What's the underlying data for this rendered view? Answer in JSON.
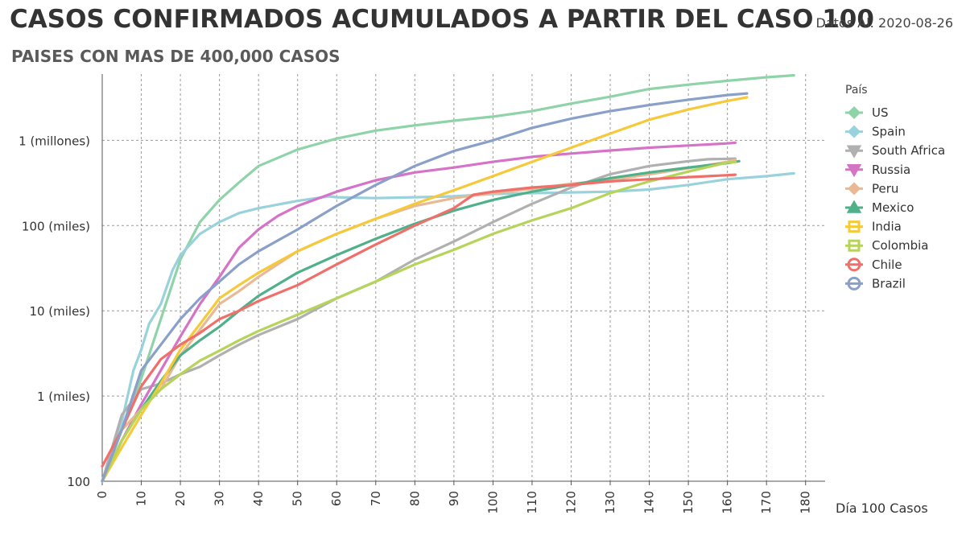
{
  "header": {
    "title": "CASOS CONFIRMADOS ACUMULADOS A PARTIR DEL CASO 100",
    "subtitle": "PAISES CON MAS DE 400,000 CASOS",
    "date_prefix": "Datos Al: ",
    "date_value": "2020-08-26"
  },
  "chart_data": {
    "type": "line",
    "title": "CASOS CONFIRMADOS ACUMULADOS A PARTIR DEL CASO 100",
    "xlabel": "Día 100 Casos",
    "ylabel": "",
    "yscale": "log",
    "xlim": [
      0,
      185
    ],
    "ylim": [
      100,
      6000000
    ],
    "x_ticks": [
      0,
      10,
      20,
      30,
      40,
      50,
      60,
      70,
      80,
      90,
      100,
      110,
      120,
      130,
      140,
      150,
      160,
      170,
      180
    ],
    "y_ticks": [
      {
        "value": 100,
        "label": "100"
      },
      {
        "value": 1000,
        "label": "1 (miles)"
      },
      {
        "value": 10000,
        "label": "10 (miles)"
      },
      {
        "value": 100000,
        "label": "100 (miles)"
      },
      {
        "value": 1000000,
        "label": "1 (millones)"
      }
    ],
    "grid": true,
    "legend_title": "País",
    "legend_position": "right",
    "series": [
      {
        "name": "US",
        "color": "#8fd3a8",
        "marker": "diamond",
        "points": [
          [
            0,
            100
          ],
          [
            5,
            400
          ],
          [
            10,
            1600
          ],
          [
            15,
            8000
          ],
          [
            20,
            40000
          ],
          [
            25,
            110000
          ],
          [
            30,
            200000
          ],
          [
            35,
            320000
          ],
          [
            40,
            500000
          ],
          [
            50,
            780000
          ],
          [
            60,
            1050000
          ],
          [
            70,
            1300000
          ],
          [
            80,
            1500000
          ],
          [
            90,
            1700000
          ],
          [
            100,
            1900000
          ],
          [
            110,
            2200000
          ],
          [
            120,
            2700000
          ],
          [
            130,
            3250000
          ],
          [
            140,
            4000000
          ],
          [
            150,
            4500000
          ],
          [
            160,
            5000000
          ],
          [
            170,
            5500000
          ],
          [
            177,
            5800000
          ]
        ]
      },
      {
        "name": "Spain",
        "color": "#9ad2dc",
        "marker": "diamond",
        "points": [
          [
            0,
            100
          ],
          [
            5,
            500
          ],
          [
            8,
            2000
          ],
          [
            10,
            3500
          ],
          [
            12,
            7000
          ],
          [
            15,
            12000
          ],
          [
            18,
            30000
          ],
          [
            20,
            45000
          ],
          [
            25,
            80000
          ],
          [
            30,
            110000
          ],
          [
            35,
            140000
          ],
          [
            40,
            160000
          ],
          [
            50,
            195000
          ],
          [
            58,
            220000
          ],
          [
            60,
            215000
          ],
          [
            70,
            210000
          ],
          [
            80,
            215000
          ],
          [
            90,
            220000
          ],
          [
            100,
            235000
          ],
          [
            110,
            240000
          ],
          [
            120,
            245000
          ],
          [
            130,
            250000
          ],
          [
            140,
            265000
          ],
          [
            150,
            300000
          ],
          [
            160,
            350000
          ],
          [
            170,
            380000
          ],
          [
            177,
            410000
          ]
        ]
      },
      {
        "name": "South Africa",
        "color": "#b0b0b0",
        "marker": "triangle-down",
        "points": [
          [
            0,
            100
          ],
          [
            5,
            600
          ],
          [
            10,
            1200
          ],
          [
            15,
            1400
          ],
          [
            20,
            1800
          ],
          [
            25,
            2200
          ],
          [
            30,
            3000
          ],
          [
            35,
            4000
          ],
          [
            40,
            5200
          ],
          [
            50,
            8000
          ],
          [
            60,
            14000
          ],
          [
            70,
            22000
          ],
          [
            80,
            40000
          ],
          [
            90,
            65000
          ],
          [
            100,
            110000
          ],
          [
            110,
            180000
          ],
          [
            120,
            280000
          ],
          [
            130,
            400000
          ],
          [
            140,
            500000
          ],
          [
            150,
            570000
          ],
          [
            155,
            600000
          ],
          [
            162,
            610000
          ]
        ]
      },
      {
        "name": "Russia",
        "color": "#d573c7",
        "marker": "triangle-down",
        "points": [
          [
            0,
            100
          ],
          [
            5,
            300
          ],
          [
            10,
            800
          ],
          [
            15,
            2000
          ],
          [
            20,
            5000
          ],
          [
            25,
            12000
          ],
          [
            30,
            25000
          ],
          [
            35,
            55000
          ],
          [
            40,
            90000
          ],
          [
            45,
            130000
          ],
          [
            50,
            170000
          ],
          [
            60,
            250000
          ],
          [
            70,
            340000
          ],
          [
            80,
            420000
          ],
          [
            90,
            480000
          ],
          [
            100,
            560000
          ],
          [
            110,
            640000
          ],
          [
            120,
            700000
          ],
          [
            130,
            760000
          ],
          [
            140,
            820000
          ],
          [
            150,
            870000
          ],
          [
            160,
            920000
          ],
          [
            162,
            940000
          ]
        ]
      },
      {
        "name": "Peru",
        "color": "#e8b994",
        "marker": "diamond",
        "points": [
          [
            0,
            100
          ],
          [
            5,
            400
          ],
          [
            10,
            700
          ],
          [
            15,
            1200
          ],
          [
            20,
            3000
          ],
          [
            25,
            6000
          ],
          [
            30,
            12000
          ],
          [
            35,
            17000
          ],
          [
            40,
            25000
          ],
          [
            50,
            50000
          ],
          [
            60,
            80000
          ],
          [
            70,
            120000
          ],
          [
            80,
            170000
          ],
          [
            90,
            210000
          ],
          [
            100,
            240000
          ],
          [
            110,
            270000
          ],
          [
            120,
            310000
          ],
          [
            130,
            340000
          ],
          [
            140,
            400000
          ],
          [
            150,
            470000
          ],
          [
            160,
            560000
          ],
          [
            162,
            590000
          ]
        ]
      },
      {
        "name": "Mexico",
        "color": "#4fb08a",
        "marker": "triangle",
        "points": [
          [
            0,
            100
          ],
          [
            5,
            300
          ],
          [
            10,
            700
          ],
          [
            15,
            1500
          ],
          [
            20,
            3000
          ],
          [
            25,
            4500
          ],
          [
            30,
            6500
          ],
          [
            35,
            10000
          ],
          [
            40,
            15000
          ],
          [
            50,
            28000
          ],
          [
            60,
            45000
          ],
          [
            70,
            70000
          ],
          [
            80,
            105000
          ],
          [
            90,
            150000
          ],
          [
            100,
            200000
          ],
          [
            110,
            250000
          ],
          [
            120,
            300000
          ],
          [
            130,
            360000
          ],
          [
            140,
            420000
          ],
          [
            150,
            480000
          ],
          [
            160,
            540000
          ],
          [
            163,
            570000
          ]
        ]
      },
      {
        "name": "India",
        "color": "#f6c93a",
        "marker": "square",
        "points": [
          [
            0,
            100
          ],
          [
            5,
            250
          ],
          [
            10,
            600
          ],
          [
            15,
            1400
          ],
          [
            20,
            3500
          ],
          [
            25,
            7000
          ],
          [
            30,
            14000
          ],
          [
            35,
            20000
          ],
          [
            40,
            28000
          ],
          [
            50,
            50000
          ],
          [
            60,
            80000
          ],
          [
            70,
            120000
          ],
          [
            80,
            180000
          ],
          [
            90,
            260000
          ],
          [
            100,
            380000
          ],
          [
            110,
            560000
          ],
          [
            120,
            820000
          ],
          [
            130,
            1200000
          ],
          [
            140,
            1750000
          ],
          [
            150,
            2300000
          ],
          [
            160,
            2900000
          ],
          [
            165,
            3200000
          ]
        ]
      },
      {
        "name": "Colombia",
        "color": "#b7d45a",
        "marker": "square",
        "points": [
          [
            0,
            100
          ],
          [
            5,
            300
          ],
          [
            10,
            700
          ],
          [
            15,
            1200
          ],
          [
            20,
            1800
          ],
          [
            25,
            2600
          ],
          [
            30,
            3400
          ],
          [
            35,
            4500
          ],
          [
            40,
            5800
          ],
          [
            50,
            9000
          ],
          [
            60,
            14000
          ],
          [
            70,
            22000
          ],
          [
            80,
            35000
          ],
          [
            90,
            52000
          ],
          [
            100,
            80000
          ],
          [
            110,
            115000
          ],
          [
            120,
            160000
          ],
          [
            130,
            240000
          ],
          [
            140,
            330000
          ],
          [
            150,
            430000
          ],
          [
            160,
            550000
          ],
          [
            162,
            560000
          ]
        ]
      },
      {
        "name": "Chile",
        "color": "#ef6f6a",
        "marker": "circle",
        "points": [
          [
            0,
            150
          ],
          [
            5,
            400
          ],
          [
            10,
            1300
          ],
          [
            15,
            2700
          ],
          [
            20,
            4000
          ],
          [
            25,
            5500
          ],
          [
            30,
            8000
          ],
          [
            35,
            10000
          ],
          [
            40,
            13000
          ],
          [
            50,
            20000
          ],
          [
            60,
            35000
          ],
          [
            70,
            60000
          ],
          [
            80,
            100000
          ],
          [
            90,
            160000
          ],
          [
            95,
            230000
          ],
          [
            100,
            250000
          ],
          [
            110,
            280000
          ],
          [
            120,
            300000
          ],
          [
            130,
            330000
          ],
          [
            140,
            350000
          ],
          [
            150,
            370000
          ],
          [
            160,
            390000
          ],
          [
            162,
            395000
          ]
        ]
      },
      {
        "name": "Brazil",
        "color": "#8aa0c8",
        "marker": "circle",
        "points": [
          [
            0,
            100
          ],
          [
            5,
            400
          ],
          [
            10,
            2000
          ],
          [
            15,
            4000
          ],
          [
            20,
            8000
          ],
          [
            25,
            14000
          ],
          [
            30,
            22000
          ],
          [
            35,
            35000
          ],
          [
            40,
            50000
          ],
          [
            50,
            90000
          ],
          [
            60,
            170000
          ],
          [
            70,
            300000
          ],
          [
            80,
            500000
          ],
          [
            90,
            750000
          ],
          [
            100,
            1000000
          ],
          [
            110,
            1400000
          ],
          [
            120,
            1800000
          ],
          [
            130,
            2200000
          ],
          [
            140,
            2600000
          ],
          [
            150,
            3000000
          ],
          [
            160,
            3400000
          ],
          [
            165,
            3550000
          ]
        ]
      }
    ]
  }
}
